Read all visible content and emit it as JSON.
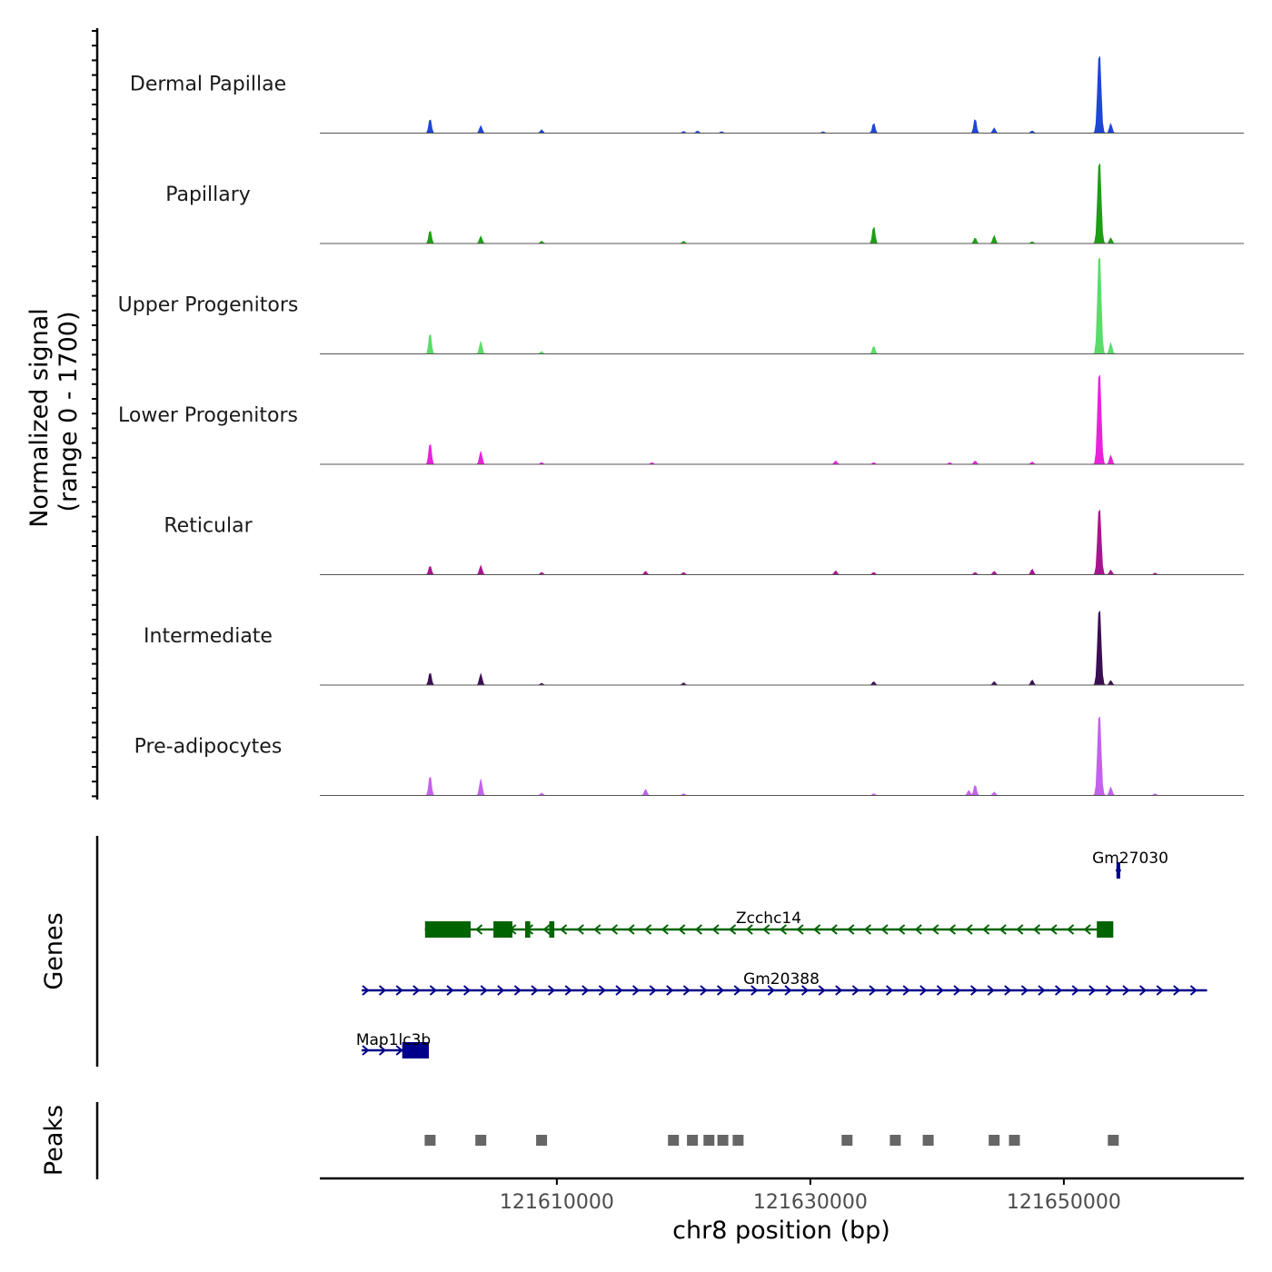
{
  "chart_data": {
    "type": "coverage",
    "y_axis_label_line1": "Normalized signal",
    "y_axis_label_line2": "(range 0 - 1700)",
    "ylim": [
      0,
      1700
    ],
    "xlabel": "chr8 position (bp)",
    "xlim": [
      121591300,
      121664200
    ],
    "x_ticks": [
      121610000,
      121630000,
      121650000
    ],
    "x_tick_labels": [
      "121610000",
      "121630000",
      "121650000"
    ],
    "tracks": [
      {
        "name": "Dermal Papillae",
        "color": "#1f47d6",
        "peaks": [
          [
            121600000,
            260
          ],
          [
            121604000,
            130
          ],
          [
            121608800,
            60
          ],
          [
            121620000,
            30
          ],
          [
            121621100,
            40
          ],
          [
            121623000,
            25
          ],
          [
            121631000,
            25
          ],
          [
            121635000,
            180
          ],
          [
            121643000,
            260
          ],
          [
            121644500,
            90
          ],
          [
            121647500,
            40
          ],
          [
            121652800,
            1460
          ],
          [
            121653700,
            170
          ]
        ]
      },
      {
        "name": "Papillary",
        "color": "#1e9e14",
        "peaks": [
          [
            121600000,
            240
          ],
          [
            121604000,
            130
          ],
          [
            121608800,
            40
          ],
          [
            121620000,
            40
          ],
          [
            121635000,
            310
          ],
          [
            121643000,
            100
          ],
          [
            121644500,
            140
          ],
          [
            121647500,
            30
          ],
          [
            121652800,
            1520
          ],
          [
            121653700,
            100
          ]
        ]
      },
      {
        "name": "Upper Progenitors",
        "color": "#5cdc6a",
        "peaks": [
          [
            121600000,
            380
          ],
          [
            121604000,
            220
          ],
          [
            121608800,
            40
          ],
          [
            121635000,
            140
          ],
          [
            121652800,
            1860
          ],
          [
            121653700,
            200
          ]
        ]
      },
      {
        "name": "Lower Progenitors",
        "color": "#ea22dc",
        "peaks": [
          [
            121600000,
            390
          ],
          [
            121604000,
            230
          ],
          [
            121608800,
            30
          ],
          [
            121617500,
            30
          ],
          [
            121632000,
            60
          ],
          [
            121635000,
            30
          ],
          [
            121641000,
            30
          ],
          [
            121643000,
            60
          ],
          [
            121647500,
            40
          ],
          [
            121652800,
            1700
          ],
          [
            121653700,
            160
          ]
        ]
      },
      {
        "name": "Reticular",
        "color": "#a8168e",
        "peaks": [
          [
            121600000,
            160
          ],
          [
            121604000,
            160
          ],
          [
            121608800,
            40
          ],
          [
            121617000,
            60
          ],
          [
            121620000,
            40
          ],
          [
            121632000,
            70
          ],
          [
            121635000,
            40
          ],
          [
            121643000,
            40
          ],
          [
            121644500,
            60
          ],
          [
            121647500,
            100
          ],
          [
            121652800,
            1230
          ],
          [
            121653700,
            80
          ],
          [
            121657200,
            30
          ]
        ]
      },
      {
        "name": "Intermediate",
        "color": "#3b0f52",
        "peaks": [
          [
            121600000,
            230
          ],
          [
            121604000,
            200
          ],
          [
            121608800,
            30
          ],
          [
            121620000,
            40
          ],
          [
            121635000,
            60
          ],
          [
            121644500,
            60
          ],
          [
            121647500,
            90
          ],
          [
            121652800,
            1410
          ],
          [
            121653700,
            80
          ]
        ]
      },
      {
        "name": "Pre-adipocytes",
        "color": "#c362ec",
        "peaks": [
          [
            121600000,
            360
          ],
          [
            121604000,
            290
          ],
          [
            121608800,
            40
          ],
          [
            121617000,
            110
          ],
          [
            121620000,
            30
          ],
          [
            121635000,
            30
          ],
          [
            121642500,
            90
          ],
          [
            121643000,
            190
          ],
          [
            121644500,
            60
          ],
          [
            121652800,
            1500
          ],
          [
            121653700,
            150
          ],
          [
            121657200,
            30
          ]
        ]
      }
    ],
    "genes_axis_label": "Genes",
    "genes": [
      {
        "name": "Gm27030",
        "strand": "+",
        "color": "#00008b",
        "start": 121654100,
        "end": 121654500,
        "exons": [
          [
            121654150,
            121654450
          ]
        ]
      },
      {
        "name": "Zcchc14",
        "strand": "-",
        "color": "#006400",
        "start": 121599600,
        "end": 121653900,
        "exons": [
          [
            121599600,
            121603200
          ],
          [
            121605000,
            121606500
          ],
          [
            121607500,
            121607900
          ],
          [
            121609400,
            121609800
          ],
          [
            121652600,
            121653900
          ]
        ]
      },
      {
        "name": "Gm20388",
        "strand": "+",
        "color": "#00008b",
        "start": 121594600,
        "end": 121661300,
        "exons": []
      },
      {
        "name": "Map1lc3b",
        "strand": "+",
        "color": "#00008b",
        "start": 121594600,
        "end": 121599900,
        "exons": [
          [
            121597800,
            121599900
          ]
        ]
      }
    ],
    "peaks_axis_label": "Peaks",
    "peak_regions": [
      121600000,
      121604000,
      121608800,
      121619200,
      121620700,
      121622000,
      121623100,
      121624300,
      121632900,
      121636700,
      121639300,
      121644500,
      121646100,
      121653900
    ]
  }
}
